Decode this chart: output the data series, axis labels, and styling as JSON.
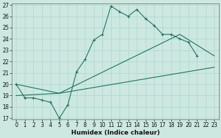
{
  "xlabel": "Humidex (Indice chaleur)",
  "bg_color": "#cce8e0",
  "line_color": "#1a6e60",
  "grid_color": "#b0d8d0",
  "ylim": [
    17,
    27
  ],
  "xlim": [
    -0.5,
    23.5
  ],
  "yticks": [
    17,
    18,
    19,
    20,
    21,
    22,
    23,
    24,
    25,
    26,
    27
  ],
  "xticks": [
    0,
    1,
    2,
    3,
    4,
    5,
    6,
    7,
    8,
    9,
    10,
    11,
    12,
    13,
    14,
    15,
    16,
    17,
    18,
    19,
    20,
    21,
    22,
    23
  ],
  "line1_x": [
    0,
    1,
    2,
    3,
    4,
    5,
    6,
    7,
    8,
    9,
    10,
    11,
    12,
    13,
    14,
    15,
    16,
    17,
    18,
    19,
    20,
    21
  ],
  "line1_y": [
    20.0,
    18.8,
    18.8,
    18.6,
    18.4,
    17.0,
    18.2,
    21.1,
    22.2,
    23.9,
    24.4,
    26.9,
    26.4,
    26.0,
    26.6,
    25.8,
    25.2,
    24.4,
    24.4,
    24.0,
    23.7,
    22.5
  ],
  "line2_x": [
    0,
    5,
    23
  ],
  "line2_y": [
    19.0,
    19.2,
    21.5
  ],
  "line3_x": [
    0,
    5,
    19,
    23
  ],
  "line3_y": [
    20.0,
    19.2,
    24.4,
    22.5
  ],
  "xlabel_fontsize": 6.5,
  "tick_fontsize": 5.5
}
